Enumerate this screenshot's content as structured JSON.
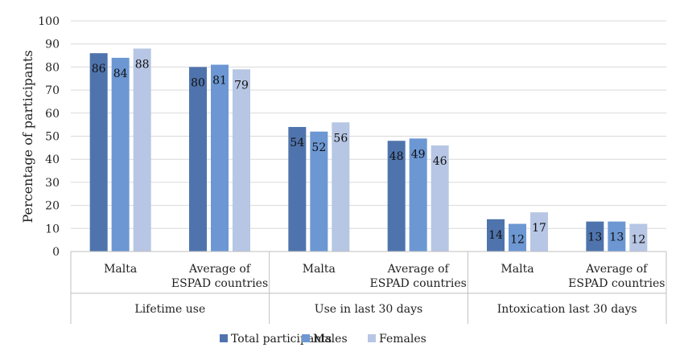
{
  "chart_data": {
    "type": "bar",
    "ylabel": "Percentage of participants",
    "xlabel": "",
    "ylim": [
      0,
      100
    ],
    "yticks": [
      0,
      10,
      20,
      30,
      40,
      50,
      60,
      70,
      80,
      90,
      100
    ],
    "grid": true,
    "legend_position": "bottom",
    "groups": [
      {
        "label": "Lifetime use",
        "categories": [
          "Malta",
          "Average of\nESPAD countries"
        ]
      },
      {
        "label": "Use in last 30 days",
        "categories": [
          "Malta",
          "Average of\nESPAD countries"
        ]
      },
      {
        "label": "Intoxication last 30 days",
        "categories": [
          "Malta",
          "Average of\nESPAD countries"
        ]
      }
    ],
    "categories": [
      "Malta",
      "Average of\nESPAD countries",
      "Malta",
      "Average of\nESPAD countries",
      "Malta",
      "Average of\nESPAD countries"
    ],
    "series": [
      {
        "name": "Total participants",
        "color": "#4f74ad",
        "values": [
          86,
          80,
          54,
          48,
          14,
          13
        ]
      },
      {
        "name": "Males",
        "color": "#6c97d3",
        "values": [
          84,
          81,
          52,
          49,
          12,
          13
        ]
      },
      {
        "name": "Females",
        "color": "#b7c6e4",
        "values": [
          88,
          79,
          56,
          46,
          17,
          12
        ]
      }
    ]
  }
}
